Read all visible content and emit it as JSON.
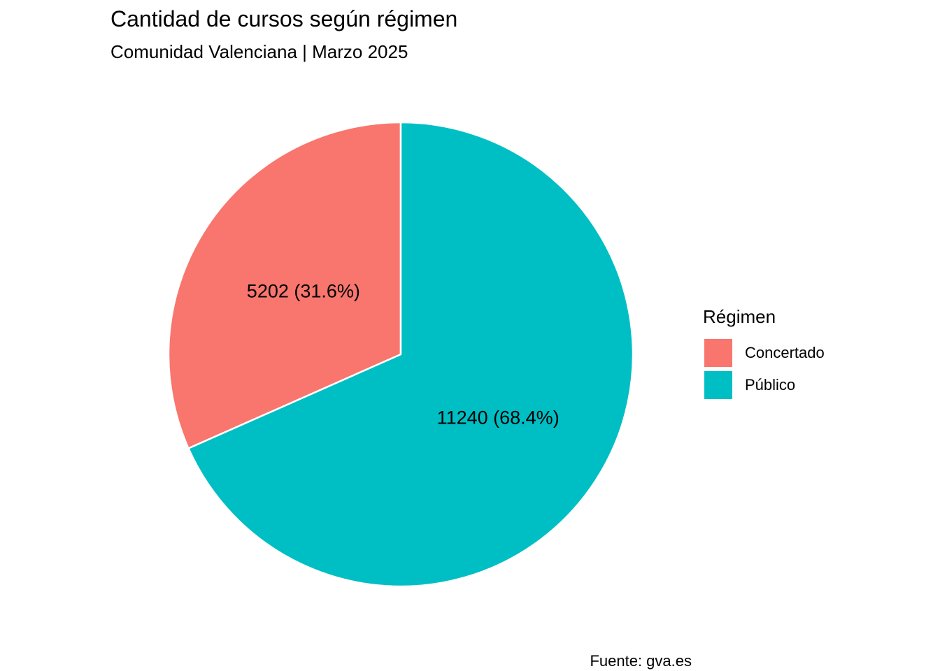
{
  "title": "Cantidad de cursos según régimen",
  "subtitle": "Comunidad Valenciana | Marzo 2025",
  "caption": "Fuente: gva.es",
  "legend": {
    "title": "Régimen",
    "items": [
      {
        "label": "Concertado",
        "color": "#F8766D"
      },
      {
        "label": "Público",
        "color": "#00BFC4"
      }
    ]
  },
  "chart_data": {
    "type": "pie",
    "title": "Cantidad de cursos según régimen",
    "subtitle": "Comunidad Valenciana | Marzo 2025",
    "legend_title": "Régimen",
    "legend_position": "right",
    "slices": [
      {
        "category": "Concertado",
        "value": 5202,
        "percent": 31.6,
        "label": "5202 (31.6%)",
        "color": "#F8766D"
      },
      {
        "category": "Público",
        "value": 11240,
        "percent": 68.4,
        "label": "11240 (68.4%)",
        "color": "#00BFC4"
      }
    ],
    "slice_border_color": "#ffffff"
  }
}
